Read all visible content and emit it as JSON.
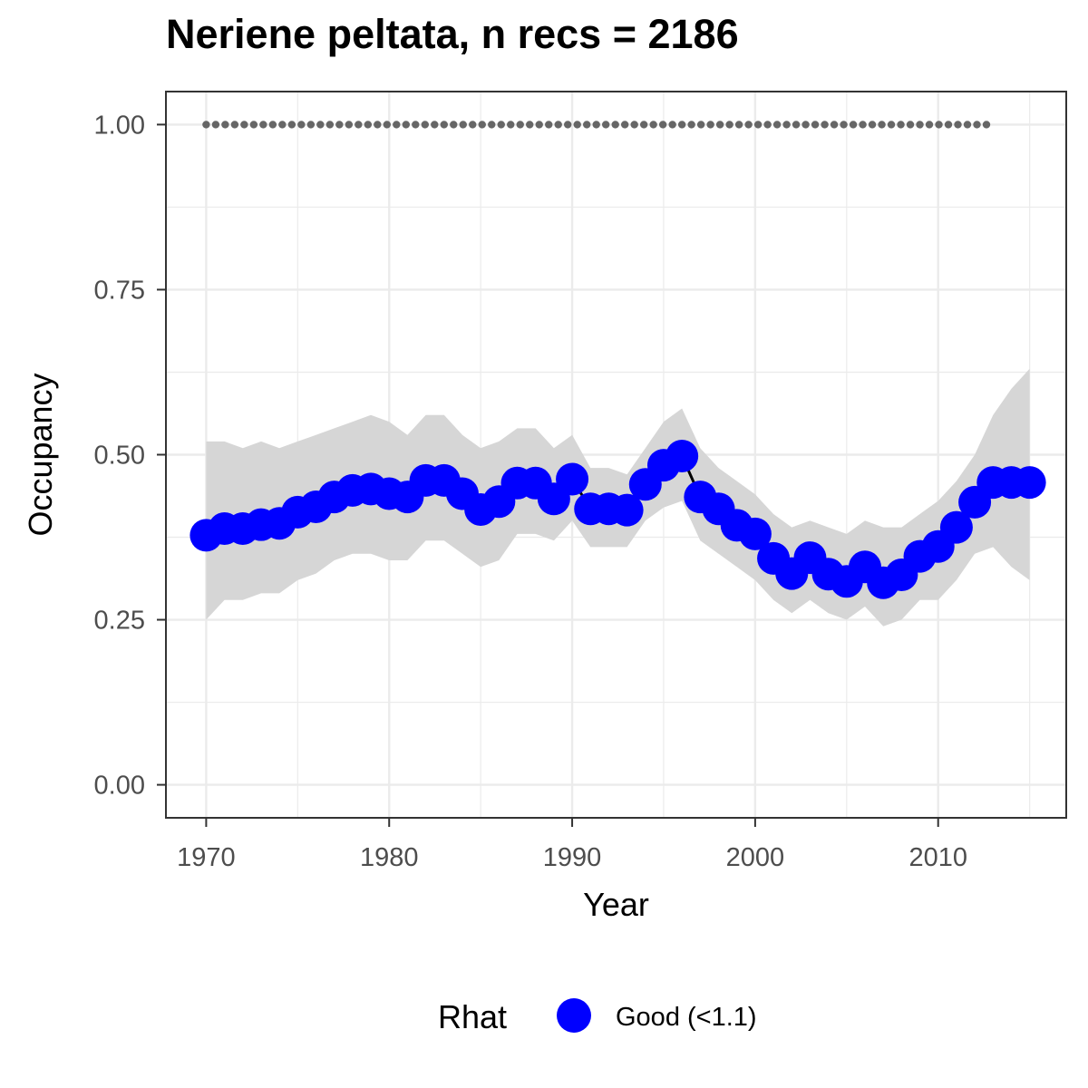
{
  "chart_data": {
    "type": "line",
    "title": "Neriene peltata, n recs = 2186",
    "xlabel": "Year",
    "ylabel": "Occupancy",
    "xlim": [
      1967.8,
      2017.0
    ],
    "ylim": [
      -0.05,
      1.05
    ],
    "x_ticks": [
      1970,
      1980,
      1990,
      2000,
      2010
    ],
    "x_tick_labels": [
      "1970",
      "1980",
      "1990",
      "2000",
      "2010"
    ],
    "y_ticks": [
      0,
      0.25,
      0.5,
      0.75,
      1.0
    ],
    "y_tick_labels": [
      "0.00",
      "0.25",
      "0.50",
      "0.75",
      "1.00"
    ],
    "grid": true,
    "legend": {
      "title": "Rhat",
      "position": "bottom",
      "entries": [
        {
          "label": "Good (<1.1)",
          "color": "#0000ff"
        }
      ]
    },
    "colors": {
      "points": "#0000ff",
      "line": "#000000",
      "ribbon": "#d6d6d6",
      "reference_dots": "#666666",
      "grid": "#ebebeb"
    },
    "series": [
      {
        "name": "Good (<1.1)",
        "x": [
          1970,
          1971,
          1972,
          1973,
          1974,
          1975,
          1976,
          1977,
          1978,
          1979,
          1980,
          1981,
          1982,
          1983,
          1984,
          1985,
          1986,
          1987,
          1988,
          1989,
          1990,
          1991,
          1992,
          1993,
          1994,
          1995,
          1996,
          1997,
          1998,
          1999,
          2000,
          2001,
          2002,
          2003,
          2004,
          2005,
          2006,
          2007,
          2008,
          2009,
          2010,
          2011,
          2012,
          2013,
          2014,
          2015
        ],
        "y": [
          0.378,
          0.388,
          0.388,
          0.394,
          0.396,
          0.413,
          0.421,
          0.436,
          0.446,
          0.448,
          0.441,
          0.436,
          0.461,
          0.461,
          0.441,
          0.417,
          0.429,
          0.457,
          0.457,
          0.433,
          0.463,
          0.418,
          0.418,
          0.416,
          0.455,
          0.484,
          0.498,
          0.436,
          0.418,
          0.393,
          0.38,
          0.343,
          0.32,
          0.344,
          0.319,
          0.308,
          0.33,
          0.306,
          0.318,
          0.346,
          0.361,
          0.39,
          0.428,
          0.458,
          0.458,
          0.458
        ],
        "lower": [
          0.25,
          0.28,
          0.28,
          0.29,
          0.29,
          0.31,
          0.32,
          0.34,
          0.35,
          0.35,
          0.34,
          0.34,
          0.37,
          0.37,
          0.35,
          0.33,
          0.34,
          0.38,
          0.38,
          0.37,
          0.4,
          0.36,
          0.36,
          0.36,
          0.4,
          0.42,
          0.43,
          0.37,
          0.35,
          0.33,
          0.31,
          0.28,
          0.26,
          0.28,
          0.26,
          0.25,
          0.27,
          0.24,
          0.25,
          0.28,
          0.28,
          0.31,
          0.35,
          0.36,
          0.33,
          0.31
        ],
        "upper": [
          0.52,
          0.52,
          0.51,
          0.52,
          0.51,
          0.52,
          0.53,
          0.54,
          0.55,
          0.56,
          0.55,
          0.53,
          0.56,
          0.56,
          0.53,
          0.51,
          0.52,
          0.54,
          0.54,
          0.51,
          0.53,
          0.48,
          0.48,
          0.47,
          0.51,
          0.55,
          0.57,
          0.51,
          0.48,
          0.46,
          0.44,
          0.41,
          0.39,
          0.4,
          0.39,
          0.38,
          0.4,
          0.39,
          0.39,
          0.41,
          0.43,
          0.46,
          0.5,
          0.56,
          0.6,
          0.63
        ]
      },
      {
        "name": "",
        "x": [
          1970,
          1971,
          1972,
          1973,
          1974,
          1975,
          1976,
          1977,
          1978,
          1979,
          1980,
          1981,
          1982,
          1983,
          1984,
          1985,
          1986,
          1987,
          1988,
          1989,
          1990,
          1991,
          1992,
          1993,
          1994,
          1995,
          1996,
          1997,
          1998,
          1999,
          2000,
          2001,
          2002,
          2003,
          2004,
          2005,
          2006,
          2007,
          2008,
          2009,
          2010,
          2011,
          2012,
          2013
        ],
        "y": [
          1,
          1,
          1,
          1,
          1,
          1,
          1,
          1,
          1,
          1,
          1,
          1,
          1,
          1,
          1,
          1,
          1,
          1,
          1,
          1,
          1,
          1,
          1,
          1,
          1,
          1,
          1,
          1,
          1,
          1,
          1,
          1,
          1,
          1,
          1,
          1,
          1,
          1,
          1,
          1,
          1,
          1,
          1,
          1
        ]
      }
    ]
  }
}
